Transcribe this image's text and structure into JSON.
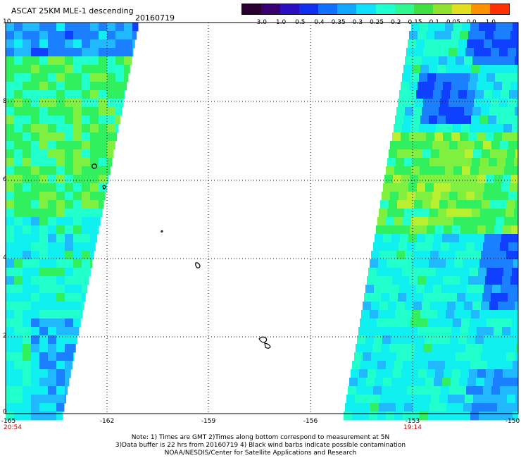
{
  "header": {
    "title": "ASCAT 25KM MLE-1 descending",
    "date": "20160719"
  },
  "colorbar": {
    "ticks": [
      "-3.0",
      "-1.0",
      "-0.5",
      "-0.4",
      "-0.35",
      "-0.3",
      "-0.25",
      "-0.2",
      "-0.15",
      "-0.1",
      "-0.05",
      "0.0",
      "1.0"
    ],
    "colors": [
      "#2a0030",
      "#3b0070",
      "#2a10c0",
      "#1030f0",
      "#1070ff",
      "#10a8ff",
      "#10e0ff",
      "#20ffd0",
      "#30f890",
      "#40e040",
      "#90e030",
      "#e0e020",
      "#ff9000",
      "#ff3000"
    ]
  },
  "map": {
    "y_labels": [
      "10",
      "8",
      "6",
      "4",
      "2",
      "0"
    ],
    "x_labels": [
      "-165",
      "-162",
      "-159",
      "-156",
      "-153",
      "-150"
    ],
    "times": {
      "left": "20:54",
      "right": "19:14"
    },
    "colors": {
      "deep_blue": "#1040ff",
      "blue": "#1a80ff",
      "light_blue": "#20b8ff",
      "cyan": "#10f0f0",
      "aqua": "#20ffcc",
      "green": "#30f060",
      "light_green": "#80f040",
      "yellow_green": "#b8f030"
    }
  },
  "notes": {
    "line1": "Note: 1) Times are GMT 2)Times along bottom correspond to measurement at 5N",
    "line2": "3)Data buffer is 22 hrs from 20160719 4) Black wind barbs indicate possible contamination",
    "line3": "NOAA/NESDIS/Center for Satellite Applications and Research"
  }
}
